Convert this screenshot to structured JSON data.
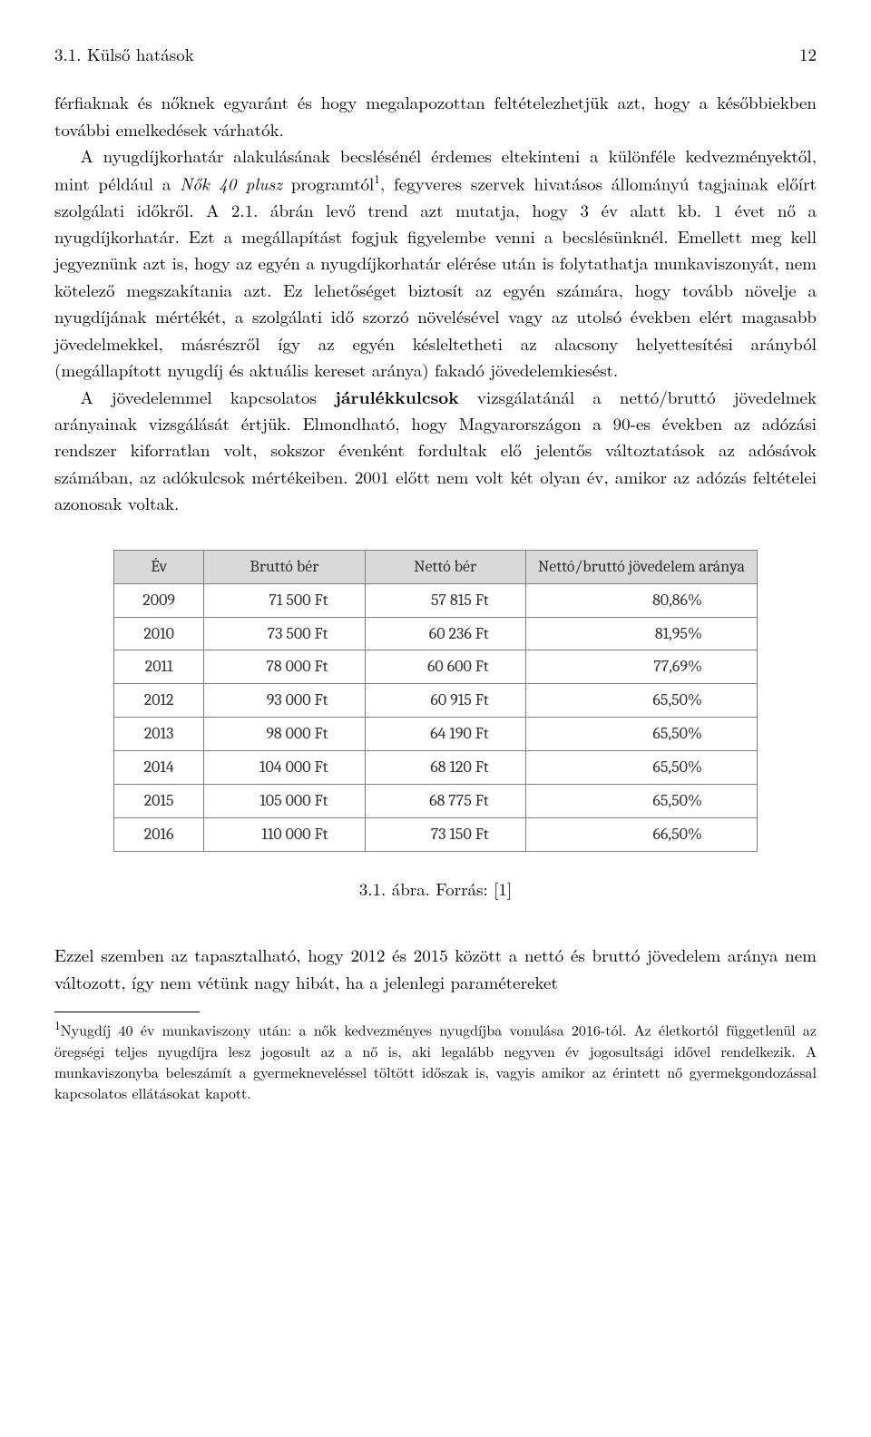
{
  "header": {
    "section": "3.1. Külső hatások",
    "page": "12"
  },
  "para1": "férfiaknak és nőknek egyaránt és hogy megalapozottan feltételezhetjük azt, hogy a későbbiekben további emelkedések várhatók.",
  "para2a": "A nyugdíjkorhatár alakulásának becslésénél érdemes eltekinteni a különféle kedvezményektől, mint például a ",
  "para2_italic": "Nők 40 plusz",
  "para2b": " programtól",
  "para2_fn": "1",
  "para2c": ", fegyveres szervek hivatásos állományú tagjainak előírt szolgálati időkről. A 2.1. ábrán levő trend azt mutatja, hogy 3 év alatt kb. 1 évet nő a nyugdíjkorhatár. Ezt a megállapítást fogjuk figyelembe venni a becslésünknél. Emellett meg kell jegyeznünk azt is, hogy az egyén a nyugdíjkorhatár elérése után is folytathatja munkaviszonyát, nem kötelező megszakítania azt. Ez lehetőséget biztosít az egyén számára, hogy tovább növelje a nyugdíjának mértékét, a szolgálati idő szorzó növelésével vagy az utolsó években elért magasabb jövedelmekkel, másrészről így az egyén késleltetheti az alacsony helyettesítési arányból (megállapított nyugdíj és aktuális kereset aránya) fakadó jövedelemkiesést.",
  "para3a": "A jövedelemmel kapcsolatos ",
  "para3_bold": "járulékkulcsok",
  "para3b": " vizsgálatánál a nettó/bruttó jövedelmek arányainak vizsgálását értjük. Elmondható, hogy Magyarországon a 90-es években az adózási rendszer kiforratlan volt, sokszor évenként fordultak elő jelentős változtatások az adósávok számában, az adókulcsok mértékeiben. 2001 előtt nem volt két olyan év, amikor az adózás feltételei azonosak voltak.",
  "table": {
    "columns": [
      "Év",
      "Bruttó bér",
      "Nettó bér",
      "Nettó/bruttó jövedelem aránya"
    ],
    "rows": [
      [
        "2009",
        "71 500 Ft",
        "57 815 Ft",
        "80,86%"
      ],
      [
        "2010",
        "73 500 Ft",
        "60 236 Ft",
        "81,95%"
      ],
      [
        "2011",
        "78 000 Ft",
        "60 600 Ft",
        "77,69%"
      ],
      [
        "2012",
        "93 000 Ft",
        "60 915 Ft",
        "65,50%"
      ],
      [
        "2013",
        "98 000 Ft",
        "64 190 Ft",
        "65,50%"
      ],
      [
        "2014",
        "104 000 Ft",
        "68 120 Ft",
        "65,50%"
      ],
      [
        "2015",
        "105 000 Ft",
        "68 775 Ft",
        "65,50%"
      ],
      [
        "2016",
        "110 000 Ft",
        "73 150 Ft",
        "66,50%"
      ]
    ],
    "header_bg": "#d9d9d9",
    "border_color": "#7f7f7f",
    "col_widths": [
      "14%",
      "25%",
      "25%",
      "36%"
    ]
  },
  "caption": "3.1. ábra. Forrás: [1]",
  "para4": "Ezzel szemben az tapasztalható, hogy 2012 és 2015 között a nettó és bruttó jövedelem aránya nem változott, így nem vétünk nagy hibát, ha a jelenlegi paramétereket",
  "footnote": {
    "marker": "1",
    "text": "Nyugdíj 40 év munkaviszony után: a nők kedvezményes nyugdíjba vonulása 2016-tól. Az életkortól függetlenül az öregségi teljes nyugdíjra lesz jogosult az a nő is, aki legalább negyven év jogosultsági idővel rendelkezik. A munkaviszonyba beleszámít a gyermekneveléssel töltött időszak is, vagyis amikor az érintett nő gyermekgondozással kapcsolatos ellátásokat kapott."
  }
}
